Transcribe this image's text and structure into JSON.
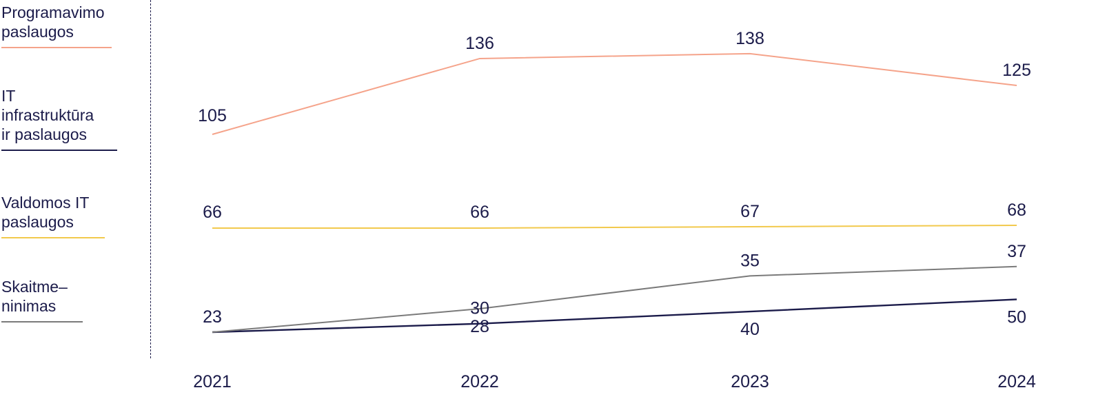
{
  "chart_data": {
    "type": "line",
    "title": "",
    "xlabel": "",
    "ylabel": "",
    "x": [
      "2021",
      "2022",
      "2023",
      "2024"
    ],
    "legend_position": "left",
    "grid": false,
    "series": [
      {
        "name": "Programavimo\npaslaugos",
        "color": "#f5a38a",
        "values": [
          105,
          136,
          138,
          125
        ]
      },
      {
        "name": "IT\ninfrastruktūra\nir paslaugos",
        "color": "#1b1b4a",
        "values": [
          23,
          30,
          40,
          50
        ]
      },
      {
        "name": "Valdomos IT\npaslaugos",
        "color": "#f2c94c",
        "values": [
          66,
          66,
          67,
          68
        ]
      },
      {
        "name": "Skaitme–\nninimas",
        "color": "#7a7a7a",
        "values": [
          23,
          28,
          35,
          37
        ]
      }
    ]
  }
}
